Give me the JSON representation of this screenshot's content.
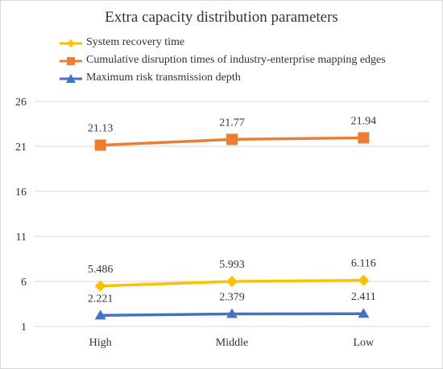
{
  "chart_data": {
    "type": "line",
    "title": "Extra capacity distribution parameters",
    "xlabel": "",
    "ylabel": "",
    "categories": [
      "High",
      "Middle",
      "Low"
    ],
    "ylim": [
      1,
      26
    ],
    "yticks": [
      1,
      6,
      11,
      16,
      21,
      26
    ],
    "grid": true,
    "legend_position": "top-left",
    "series": [
      {
        "name": "System recovery time",
        "values": [
          5.486,
          5.993,
          6.116
        ],
        "labels": [
          "5.486",
          "5.993",
          "6.116"
        ],
        "color": "#FFC000",
        "marker": "diamond"
      },
      {
        "name": "Cumulative disruption times of industry-enterprise mapping edges",
        "values": [
          21.13,
          21.77,
          21.94
        ],
        "labels": [
          "21.13",
          "21.77",
          "21.94"
        ],
        "color": "#ED7D31",
        "marker": "square"
      },
      {
        "name": "Maximum risk transmission depth",
        "values": [
          2.221,
          2.379,
          2.411
        ],
        "labels": [
          "2.221",
          "2.379",
          "2.411"
        ],
        "color": "#4472C4",
        "marker": "triangle"
      }
    ]
  }
}
